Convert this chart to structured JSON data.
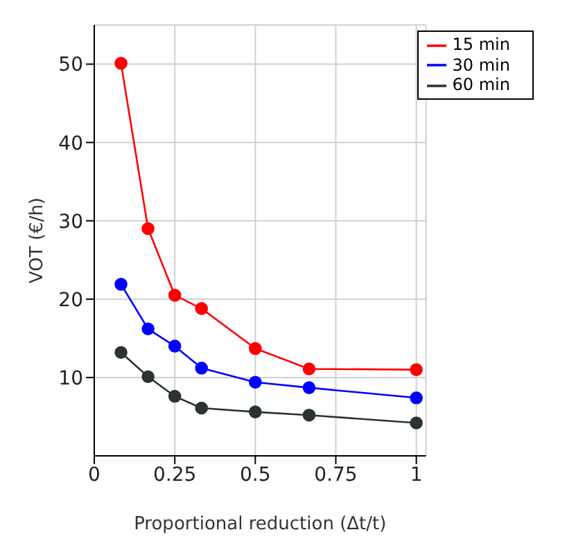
{
  "chart_data": {
    "type": "line",
    "xlabel": "Proportional reduction (Δt/t)",
    "ylabel": "VOT (€/h)",
    "xlim": [
      0,
      1.03
    ],
    "ylim": [
      0,
      55
    ],
    "xticks": [
      0,
      0.25,
      0.5,
      0.75,
      1
    ],
    "yticks": [
      10,
      20,
      30,
      40,
      50
    ],
    "grid": true,
    "legend": "top right",
    "marker": "circle",
    "line_style": "solid",
    "x": [
      0.083,
      0.167,
      0.25,
      0.333,
      0.5,
      0.667,
      1
    ],
    "series": [
      {
        "name": "15 min",
        "color": "#ff0000",
        "values": [
          50.1,
          29,
          20.5,
          18.8,
          13.7,
          11.1,
          11
        ]
      },
      {
        "name": "30 min",
        "color": "#0000ff",
        "values": [
          21.9,
          16.2,
          14,
          11.2,
          9.4,
          8.7,
          7.4
        ]
      },
      {
        "name": "60 min",
        "color": "#2b3333",
        "values": [
          13.2,
          10.1,
          7.6,
          6.1,
          5.6,
          5.2,
          4.2
        ]
      }
    ]
  }
}
